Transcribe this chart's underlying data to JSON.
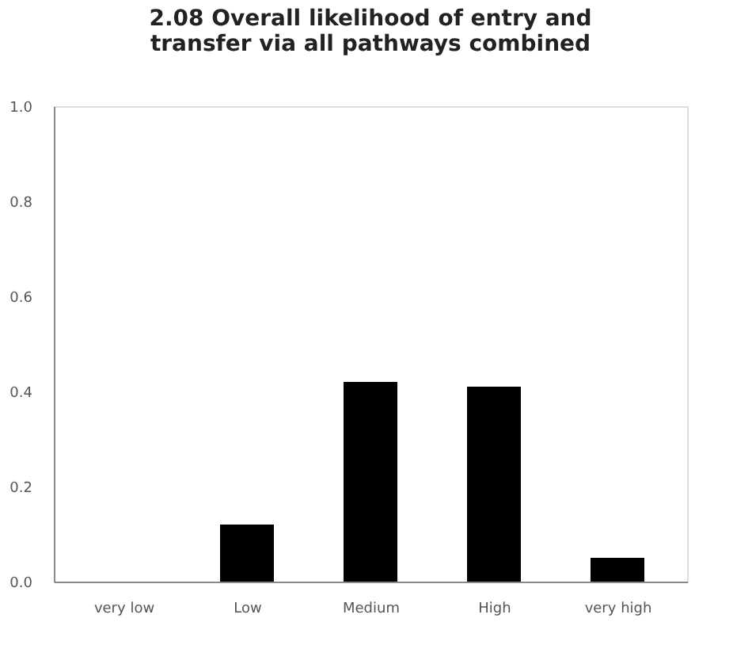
{
  "chart_data": {
    "type": "bar",
    "title": "2.08 Overall likelihood of entry and transfer via all pathways combined",
    "categories": [
      "very low",
      "Low",
      "Medium",
      "High",
      "very high"
    ],
    "values": [
      0,
      0.12,
      0.42,
      0.41,
      0.05
    ],
    "color": "#000000",
    "ylim": [
      0,
      1
    ],
    "yticks": [
      {
        "value": 0,
        "label": "0.0"
      },
      0.2,
      0.4,
      0.6,
      0.8,
      {
        "value": 1,
        "label": "1.0"
      }
    ],
    "grid": false
  }
}
